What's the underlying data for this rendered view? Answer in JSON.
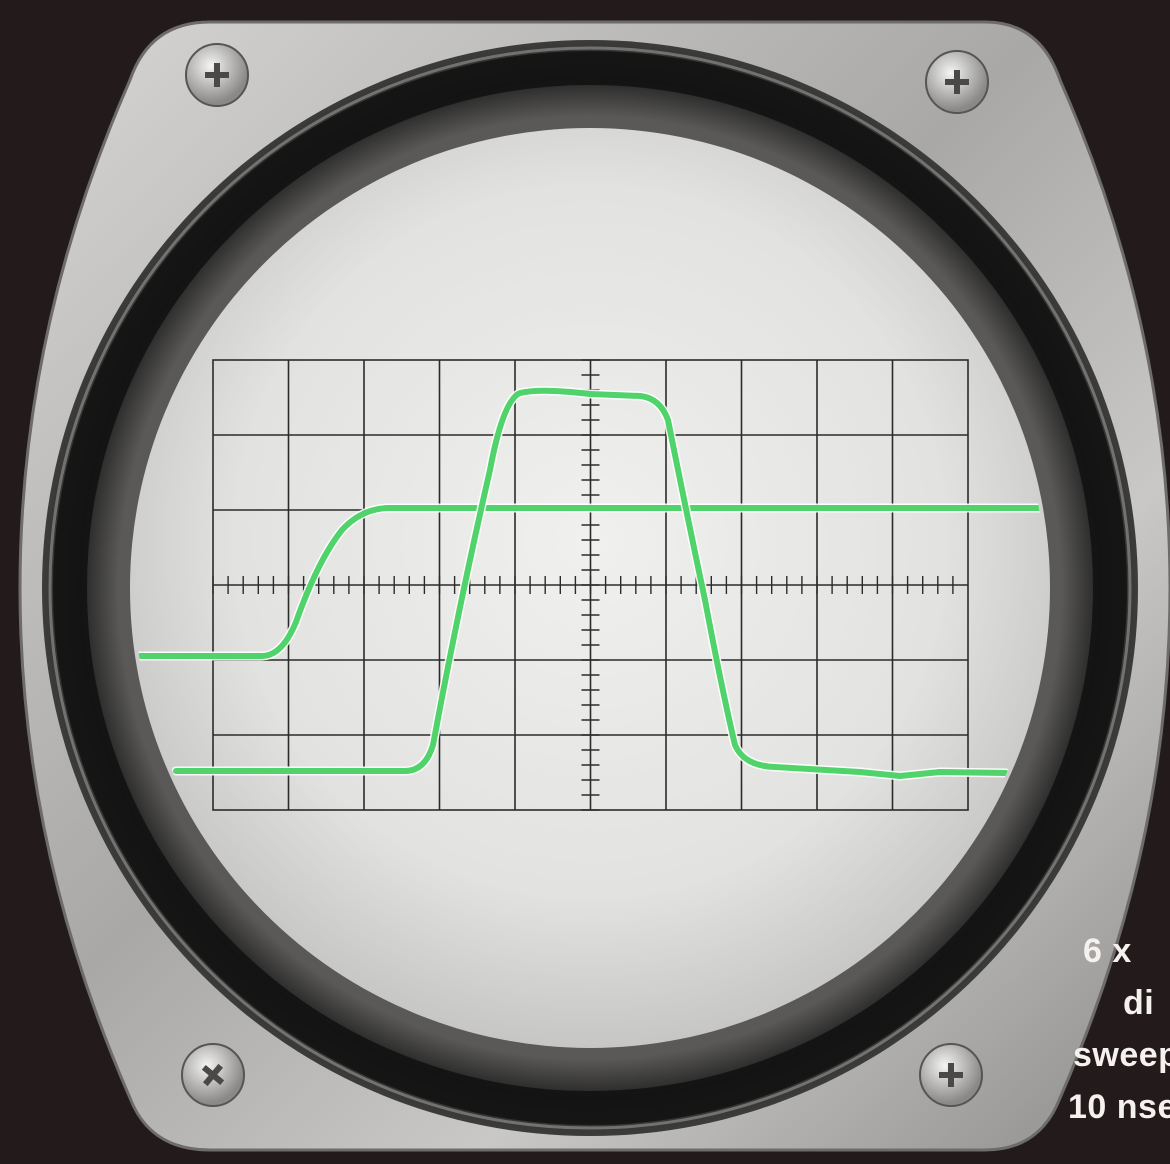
{
  "caption": {
    "line1": "6 x",
    "line2": "di",
    "line3": "sweep",
    "line4": "10 nse"
  },
  "colors": {
    "background": "#231a1c",
    "bezel": "#b9b8b6",
    "screen": "#e6e6e4",
    "grid": "#2b2b2b",
    "trace": "#4fd36a"
  },
  "icons": [
    "screw-icon",
    "screw-icon",
    "screw-icon",
    "screw-icon"
  ]
}
